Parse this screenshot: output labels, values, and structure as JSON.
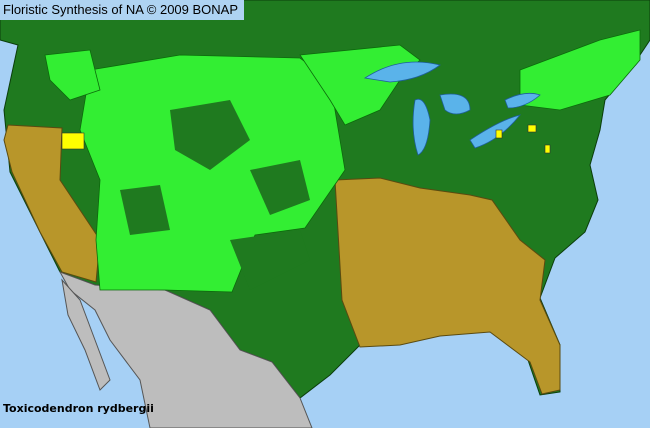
{
  "header": {
    "title": "Floristic Synthesis of NA © 2009 BONAP"
  },
  "map": {
    "species": "Toxicodendron rydbergii",
    "colors": {
      "water": "#a6d0f5",
      "lakes": "#5ab3ea",
      "present_state": "#1f7a1f",
      "present_county": "#33ee33",
      "absent_state": "#b8962a",
      "rare": "#ffff00",
      "outside_area": "#bdbdbd"
    }
  }
}
